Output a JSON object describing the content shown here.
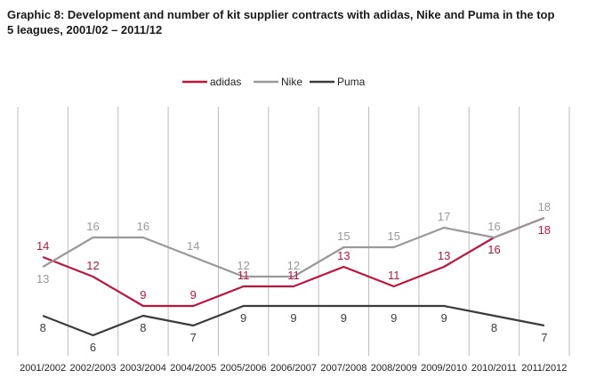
{
  "title": "Graphic 8: Development and number of kit supplier contracts with adidas, Nike and Puma in the top 5 leagues, 2001/02 – 2011/12",
  "chart_data": {
    "type": "line",
    "title": "Graphic 8: Development and number of kit supplier contracts with adidas, Nike and Puma in the top 5 leagues, 2001/02 – 2011/12",
    "xlabel": "",
    "ylabel": "",
    "categories": [
      "2001/2002",
      "2002/2003",
      "2003/2004",
      "2004/2005",
      "2005/2006",
      "2006/2007",
      "2007/2008",
      "2008/2009",
      "2009/2010",
      "2010/2011",
      "2011/2012"
    ],
    "series": [
      {
        "name": "adidas",
        "color": "#c0143c",
        "values": [
          14,
          12,
          9,
          9,
          11,
          11,
          13,
          11,
          13,
          16,
          18
        ]
      },
      {
        "name": "Nike",
        "color": "#999999",
        "values": [
          13,
          16,
          16,
          14,
          12,
          12,
          15,
          15,
          17,
          16,
          18
        ]
      },
      {
        "name": "Puma",
        "color": "#3c3c3c",
        "values": [
          8,
          6,
          8,
          7,
          9,
          9,
          9,
          9,
          9,
          8,
          7
        ]
      }
    ],
    "ylim": [
      3,
      21
    ],
    "grid": "vertical",
    "legend": "top-center"
  }
}
